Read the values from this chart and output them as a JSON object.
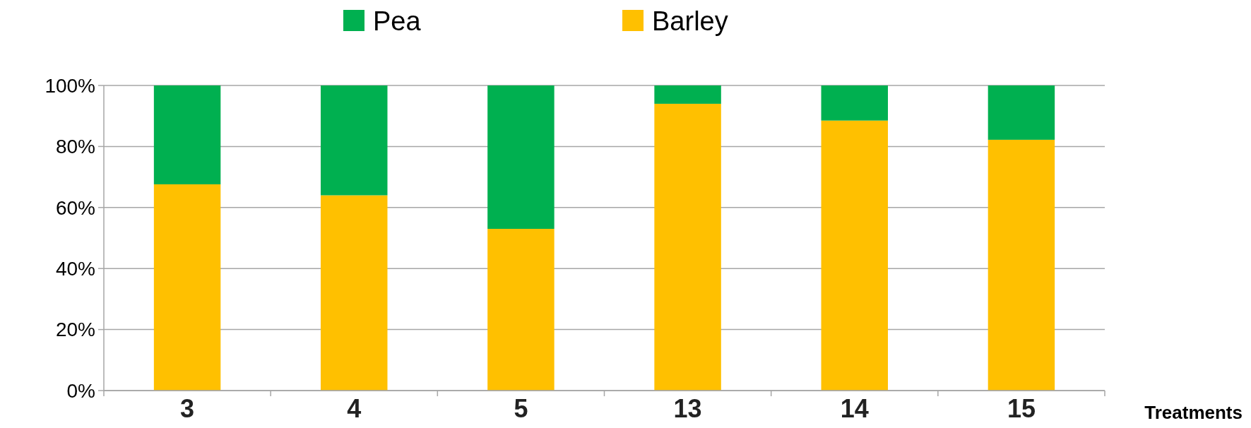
{
  "chart_data": {
    "type": "bar",
    "stacked": true,
    "xlabel": "Treatments",
    "categories": [
      "3",
      "4",
      "5",
      "13",
      "14",
      "15"
    ],
    "series": [
      {
        "name": "Barley",
        "color": "#ffc000",
        "values": [
          67.6,
          64,
          53,
          94,
          88.5,
          82.2
        ]
      },
      {
        "name": "Pea",
        "color": "#00b050",
        "values": [
          32.4,
          36,
          47,
          6,
          11.5,
          17.8
        ]
      }
    ],
    "ylim": [
      0,
      100
    ],
    "yticks": [
      {
        "value": 0,
        "label": "0%"
      },
      {
        "value": 20,
        "label": "20%"
      },
      {
        "value": 40,
        "label": "40%"
      },
      {
        "value": 60,
        "label": "60%"
      },
      {
        "value": 80,
        "label": "80%"
      },
      {
        "value": 100,
        "label": "100%"
      }
    ],
    "grid": "y",
    "legend": "top"
  }
}
